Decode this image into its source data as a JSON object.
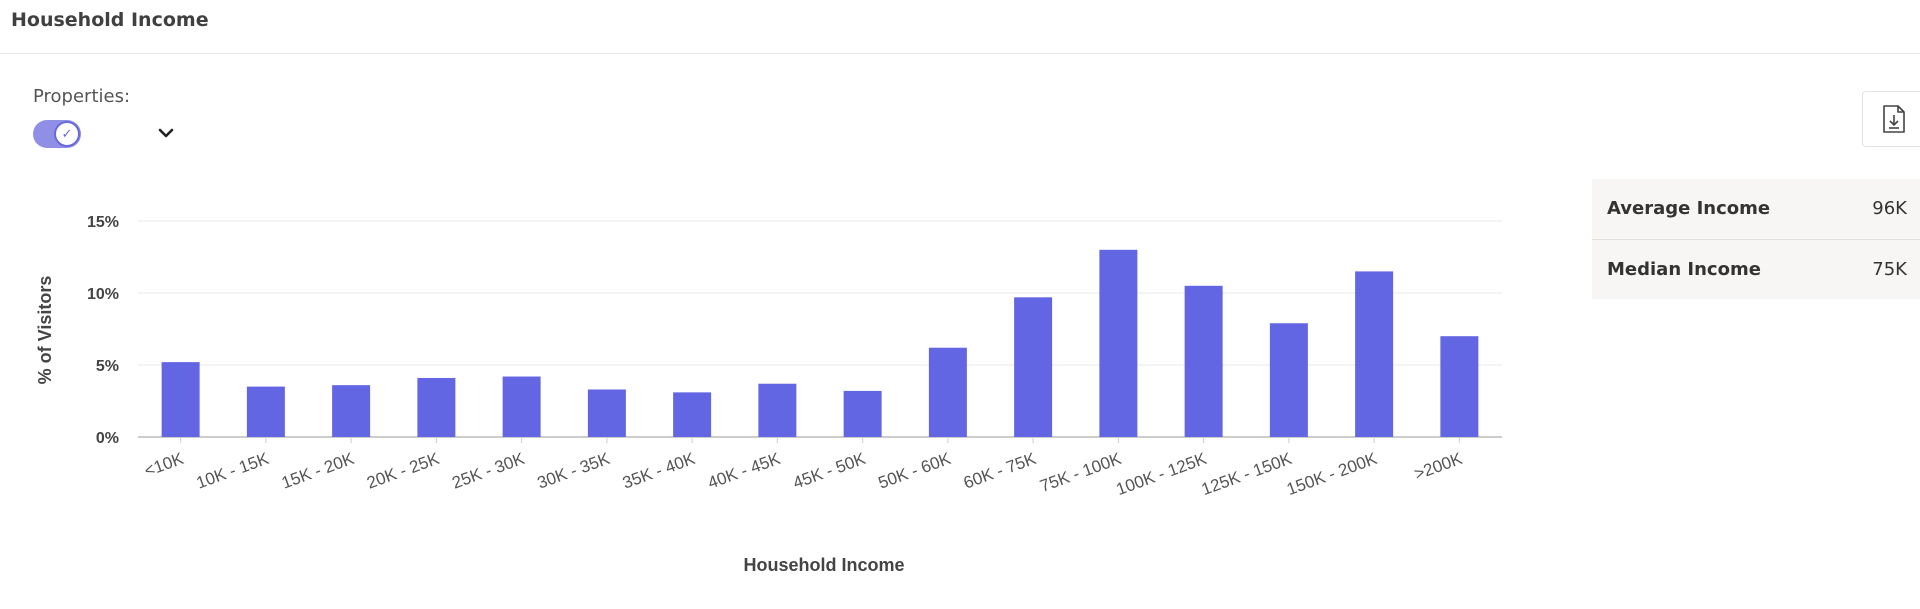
{
  "header": {
    "title": "Household Income"
  },
  "controls": {
    "properties_label": "Properties:",
    "toggle_on": true,
    "toggle_icon": "check-icon",
    "dropdown_icon": "chevron-down-icon",
    "export_icon": "file-download-icon"
  },
  "stats": [
    {
      "label": "Average Income",
      "value": "96K"
    },
    {
      "label": "Median Income",
      "value": "75K"
    }
  ],
  "colors": {
    "bar": "#6366e3",
    "grid": "#e8e8e8",
    "axis": "#cccccc"
  },
  "chart_data": {
    "type": "bar",
    "categories": [
      "<10K",
      "10K - 15K",
      "15K - 20K",
      "20K - 25K",
      "25K - 30K",
      "30K - 35K",
      "35K - 40K",
      "40K - 45K",
      "45K - 50K",
      "50K - 60K",
      "60K - 75K",
      "75K - 100K",
      "100K - 125K",
      "125K - 150K",
      "150K - 200K",
      ">200K"
    ],
    "values": [
      5.2,
      3.5,
      3.6,
      4.1,
      4.2,
      3.3,
      3.1,
      3.7,
      3.2,
      6.2,
      9.7,
      13.0,
      10.5,
      7.9,
      11.5,
      7.0
    ],
    "xlabel": "Household Income",
    "ylabel": "% of Visitors",
    "ylim": [
      0,
      15
    ],
    "yticks": [
      0,
      5,
      10,
      15
    ],
    "ytick_labels": [
      "0%",
      "5%",
      "10%",
      "15%"
    ],
    "grid": true,
    "legend": "none"
  }
}
